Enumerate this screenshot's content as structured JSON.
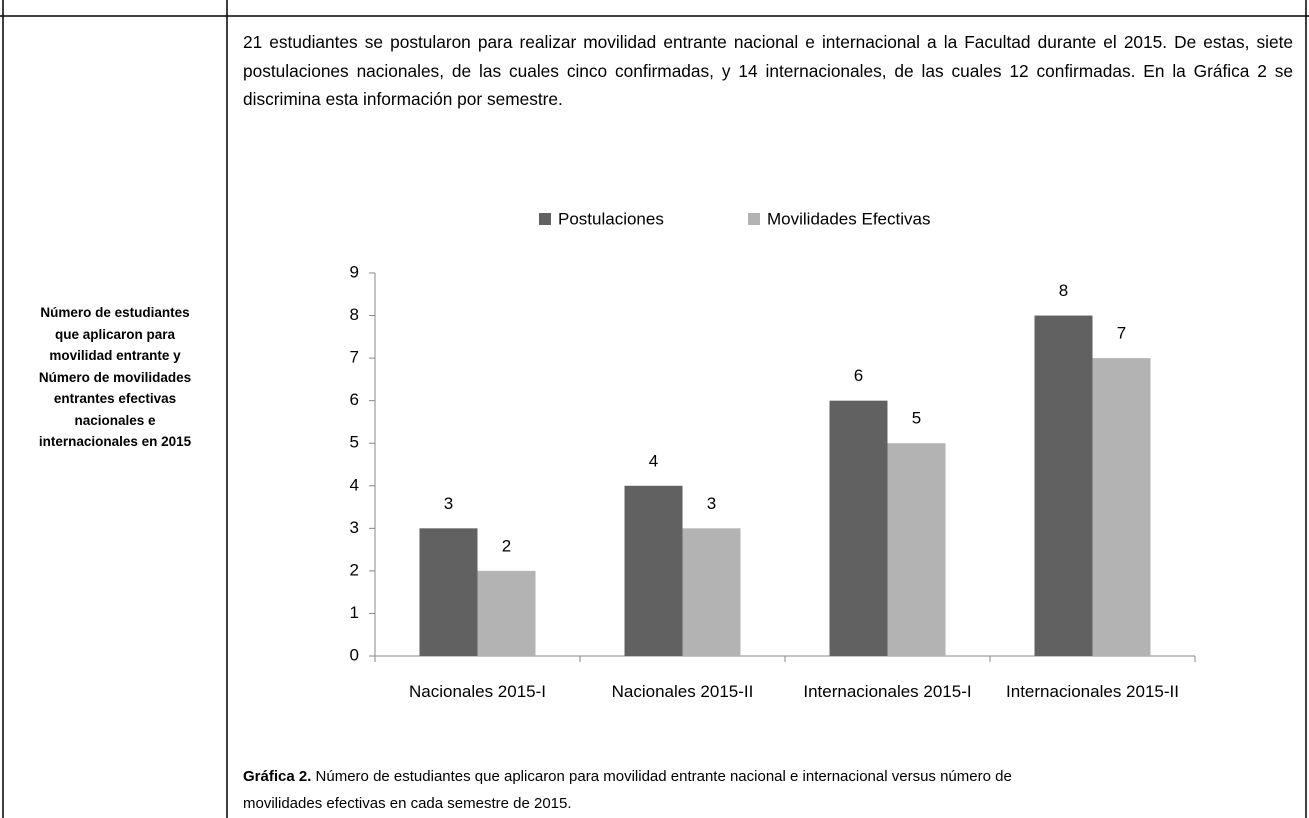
{
  "table": {
    "label": "Número de estudiantes que aplicaron para movilidad entrante y Número de movilidades entrantes efectivas nacionales e internacionales en 2015",
    "paragraph": "21 estudiantes se postularon para realizar movilidad entrante nacional e internacional a la Facultad durante el 2015. De estas, siete postulaciones nacionales, de las cuales cinco confirmadas, y 14 internacionales, de las cuales 12 confirmadas. En la Gráfica 2 se discrimina esta información por semestre.",
    "caption_label": "Gráfica 2.",
    "caption_text": "Número de estudiantes que aplicaron para movilidad entrante nacional e internacional versus número de movilidades efectivas en cada semestre de 2015."
  },
  "chart_data": {
    "type": "bar",
    "categories": [
      "Nacionales 2015-I",
      "Nacionales 2015-II",
      "Internacionales 2015-I",
      "Internacionales 2015-II"
    ],
    "series": [
      {
        "name": "Postulaciones",
        "color": "#616161",
        "values": [
          3,
          4,
          6,
          8
        ]
      },
      {
        "name": "Movilidades Efectivas",
        "color": "#b3b3b3",
        "values": [
          2,
          3,
          5,
          7
        ]
      }
    ],
    "ylim": [
      0,
      9
    ],
    "yticks": [
      0,
      1,
      2,
      3,
      4,
      5,
      6,
      7,
      8,
      9
    ],
    "grid": false,
    "legend": "top"
  }
}
